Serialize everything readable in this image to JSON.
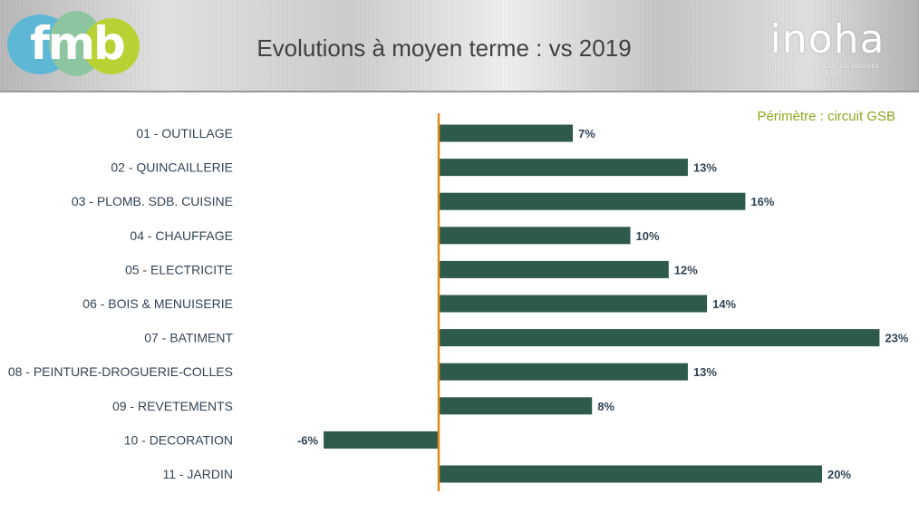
{
  "header": {
    "title": "Evolutions à moyen terme : vs 2019",
    "left_logo_text": "fmb",
    "right_logo_text": "inoha",
    "right_logo_tagline": "LES INDUSTRIELS DU NOUVEL HABITAT"
  },
  "perimetre": "Périmètre : circuit GSB",
  "colors": {
    "bar": "#2e5a4c",
    "axis": "#e08a1e",
    "perimetre": "#8aa71f"
  },
  "chart_data": {
    "type": "bar",
    "orientation": "horizontal",
    "categories": [
      "01 - OUTILLAGE",
      "02 - QUINCAILLERIE",
      "03 - PLOMB. SDB. CUISINE",
      "04 - CHAUFFAGE",
      "05 - ELECTRICITE",
      "06 - BOIS & MENUISERIE",
      "07 - BATIMENT",
      "08 - PEINTURE-DROGUERIE-COLLES",
      "09 - REVETEMENTS",
      "10 - DECORATION",
      "11 - JARDIN"
    ],
    "values": [
      7,
      13,
      16,
      10,
      12,
      14,
      23,
      13,
      8,
      -6,
      20
    ],
    "value_labels": [
      "7%",
      "13%",
      "16%",
      "10%",
      "12%",
      "14%",
      "23%",
      "13%",
      "8%",
      "-6%",
      "20%"
    ],
    "unit": "%",
    "xlim": [
      -6,
      23
    ],
    "grid": false,
    "legend": "none"
  }
}
